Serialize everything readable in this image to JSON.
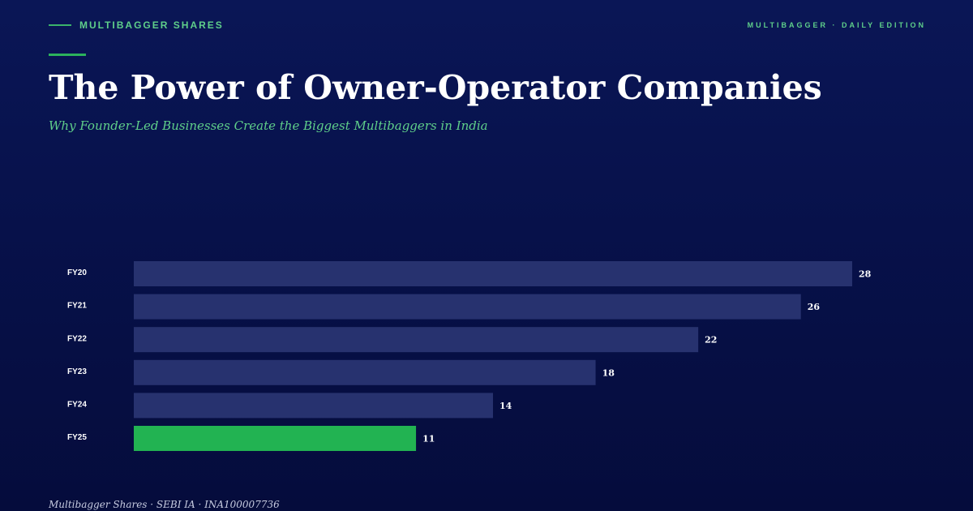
{
  "header": {
    "brand": "MULTIBAGGER SHARES",
    "edition": "MULTIBAGGER · DAILY EDITION",
    "title": "The Power of Owner-Operator Companies",
    "subtitle": "Why Founder-Led Businesses Create the Biggest Multibaggers in India"
  },
  "footer": {
    "text": "Multibagger Shares · SEBI IA · INA100007736"
  },
  "colors": {
    "accent": "#22b352",
    "bar": "#27326f",
    "highlight_bar": "#22b352",
    "background": "#07114a"
  },
  "chart_data": {
    "type": "bar",
    "orientation": "horizontal",
    "categories": [
      "FY20",
      "FY21",
      "FY22",
      "FY23",
      "FY24",
      "FY25"
    ],
    "values": [
      28,
      26,
      22,
      18,
      14,
      11
    ],
    "highlight_category": "FY25",
    "xlim": [
      0,
      28
    ],
    "grid": false,
    "legend": "none"
  }
}
